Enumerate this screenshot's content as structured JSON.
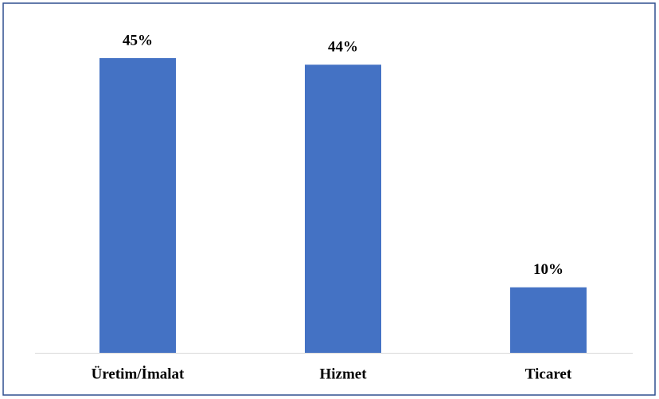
{
  "chart_data": {
    "type": "bar",
    "categories": [
      "Üretim/İmalat",
      "Hizmet",
      "Ticaret"
    ],
    "values": [
      45,
      44,
      10
    ],
    "value_labels": [
      "45%",
      "44%",
      "10%"
    ],
    "color": "#4472c4"
  }
}
